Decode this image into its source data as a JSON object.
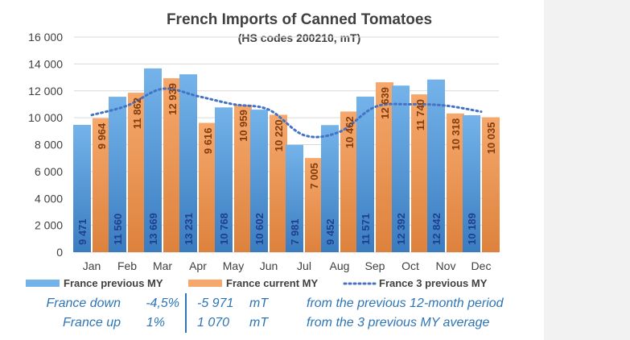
{
  "chart_data": {
    "type": "bar",
    "title": "French Imports of Canned Tomatoes",
    "subtitle": "(HS codes 200210, mT)",
    "categories": [
      "Jan",
      "Feb",
      "Mar",
      "Apr",
      "May",
      "Jun",
      "Jul",
      "Aug",
      "Sep",
      "Oct",
      "Nov",
      "Dec"
    ],
    "series": [
      {
        "name": "France previous MY",
        "type": "bar",
        "color": "#5b9bd5",
        "values": [
          9471,
          11560,
          13669,
          13231,
          10768,
          10602,
          7981,
          9452,
          11571,
          12392,
          12842,
          10189
        ],
        "labels": [
          "9 471",
          "11 560",
          "13 669",
          "13 231",
          "10 768",
          "10 602",
          "7 981",
          "9 452",
          "11 571",
          "12 392",
          "12 842",
          "10 189"
        ]
      },
      {
        "name": "France current MY",
        "type": "bar",
        "color": "#f4a460",
        "values": [
          9964,
          11862,
          12939,
          9616,
          10959,
          10220,
          7005,
          10462,
          12639,
          11740,
          10318,
          10035
        ],
        "labels": [
          "9 964",
          "11 862",
          "12 939",
          "9 616",
          "10 959",
          "10 220",
          "7 005",
          "10 462",
          "12 639",
          "11 740",
          "10 318",
          "10 035"
        ]
      },
      {
        "name": "France 3 previous MY",
        "type": "line",
        "style": "dotted",
        "color": "#4472c4",
        "values": [
          10200,
          10900,
          12150,
          11600,
          11000,
          10600,
          8700,
          8950,
          10800,
          11000,
          10900,
          10450
        ]
      }
    ],
    "ylim": [
      0,
      16000
    ],
    "yticks": [
      0,
      2000,
      4000,
      6000,
      8000,
      10000,
      12000,
      14000,
      16000
    ],
    "ytick_labels": [
      "0",
      "2 000",
      "4 000",
      "6 000",
      "8 000",
      "10 000",
      "12 000",
      "14 000",
      "16 000"
    ],
    "grid": true,
    "legend_position": "bottom"
  },
  "summary": [
    {
      "label": "France down",
      "pct": "-4,5%",
      "amount": "-5 971",
      "unit": "mT",
      "note": "from the previous 12-month period"
    },
    {
      "label": "France up",
      "pct": "1%",
      "amount": "1 070",
      "unit": "mT",
      "note": "from the 3 previous MY average"
    }
  ],
  "colors": {
    "prev_bar_top": "#74b3ea",
    "prev_bar_bottom": "#3a7cc0",
    "cur_bar_top": "#f6a86c",
    "cur_bar_bottom": "#dd823d",
    "prev_label": "#1f3f8f",
    "cur_label": "#843c0c",
    "gridline": "#d9d9d9",
    "axis_text": "#404040",
    "summary_text": "#2e75b6",
    "right_panel": "#f2f2f2"
  }
}
